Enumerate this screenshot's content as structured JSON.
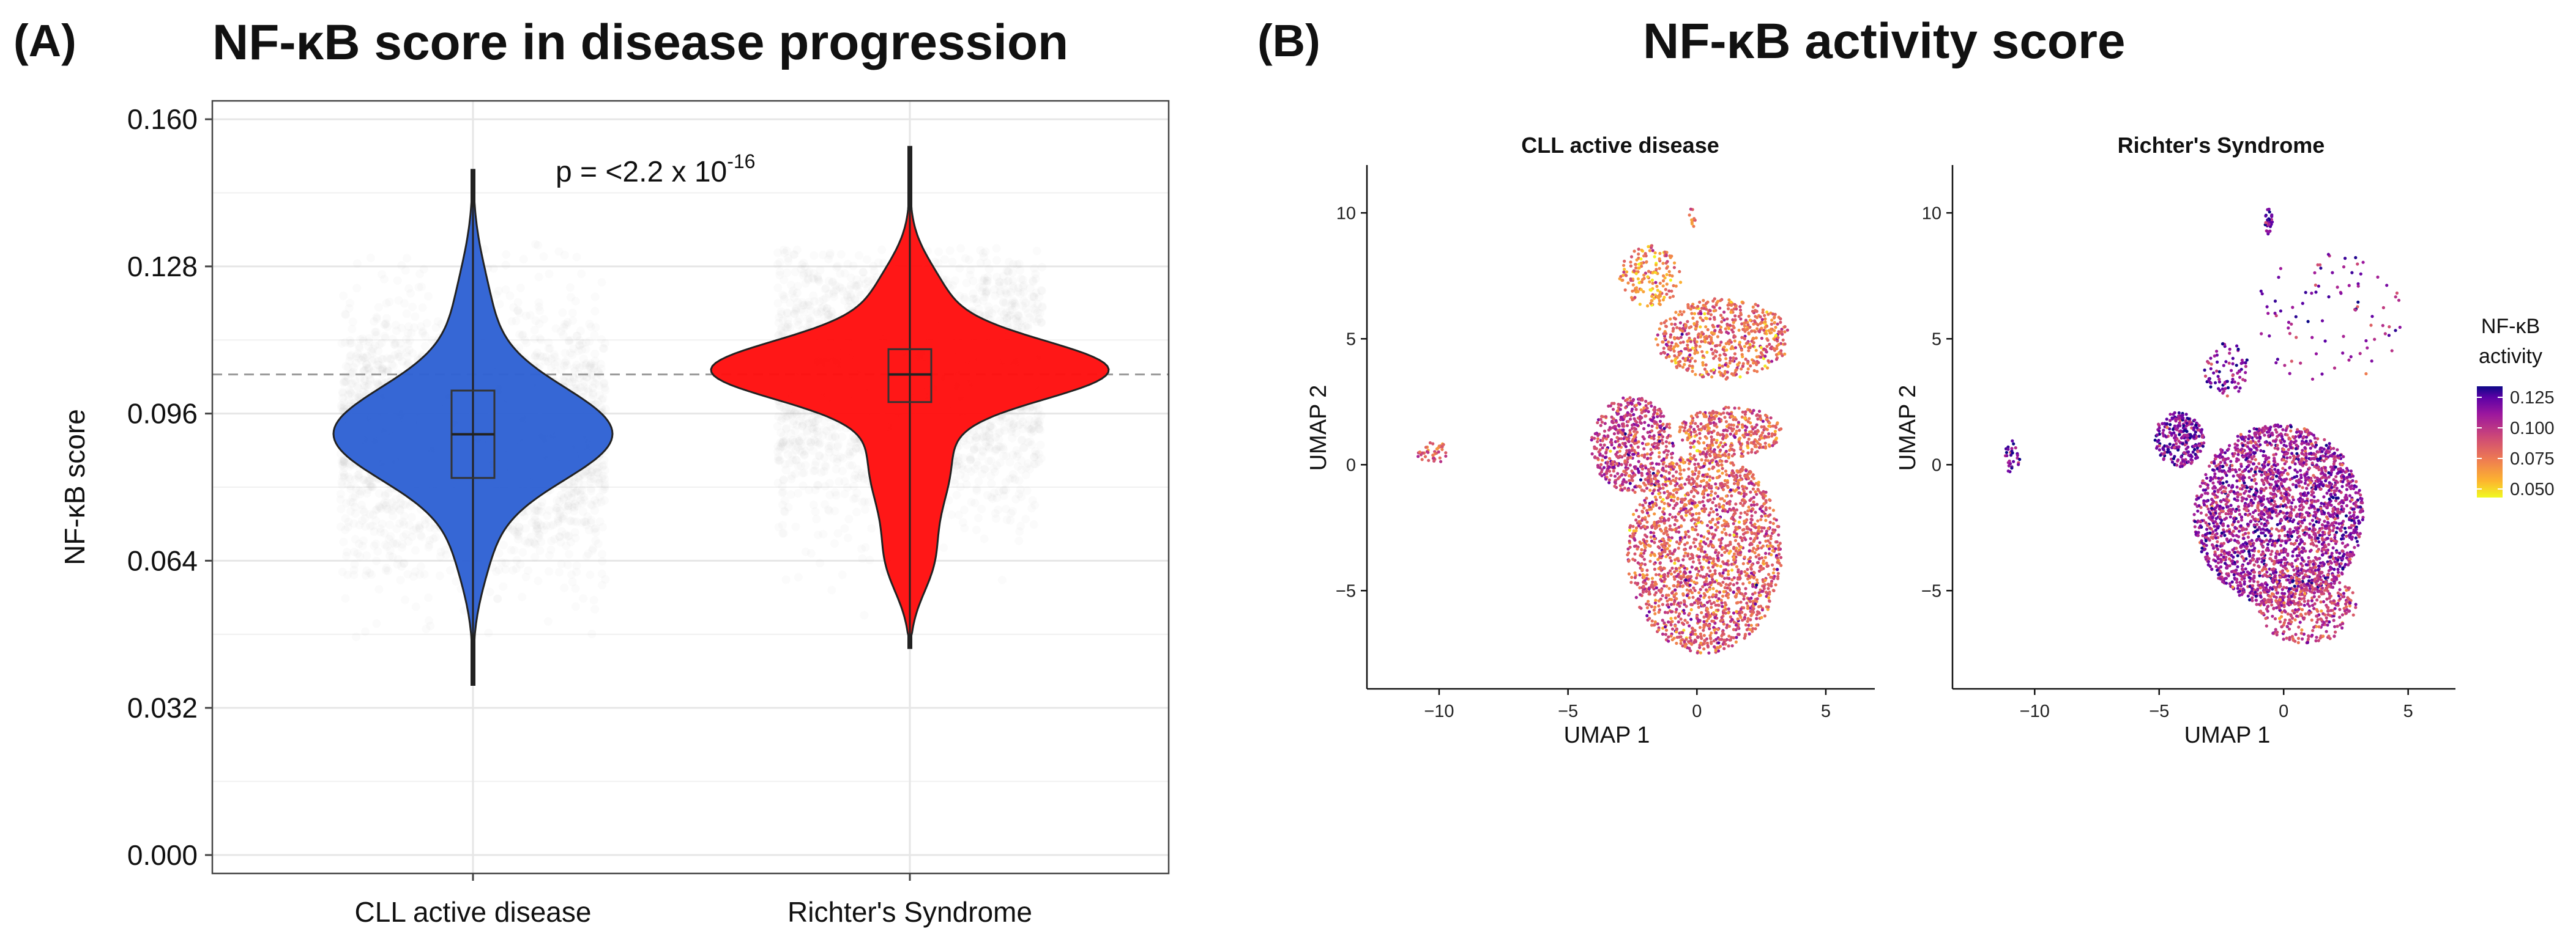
{
  "panel_a": {
    "letter": "(A)",
    "title": "NF-κB score in disease progression"
  },
  "panel_b": {
    "letter": "(B)",
    "title": "NF-κB activity score"
  },
  "colors": {
    "cll": "#2f62d4",
    "rs": "#ff1010",
    "jitter": "#9a9a9a",
    "grid": "#e6e6e6",
    "plasma_low": "#f0f921",
    "plasma_mid": "#cc4778",
    "plasma_high": "#0d0887"
  },
  "chart_data": [
    {
      "type": "violin",
      "title": "NF-κB score in disease progression",
      "xlabel": "",
      "ylabel": "NF-κB score",
      "ylim": [
        -0.004,
        0.164
      ],
      "yticks": [
        0.0,
        0.032,
        0.064,
        0.096,
        0.128,
        0.16
      ],
      "ytick_labels": [
        "0.000",
        "0.032",
        "0.064",
        "0.096",
        "0.128",
        "0.160"
      ],
      "categories": [
        "CLL active disease",
        "Richter's Syndrome"
      ],
      "series": [
        {
          "name": "CLL active disease",
          "min": 0.037,
          "q1": 0.082,
          "median": 0.0915,
          "q3": 0.101,
          "max": 0.149,
          "mode": 0.0915,
          "jitter_range": [
            0.06,
            0.127
          ]
        },
        {
          "name": "Richter's Syndrome",
          "min": 0.045,
          "q1": 0.0985,
          "median": 0.1045,
          "q3": 0.11,
          "max": 0.154,
          "mode": 0.106,
          "jitter_range": [
            0.06,
            0.126
          ]
        }
      ],
      "reference_line": 0.1045,
      "annotation": {
        "prefix": "p = <2.2 x 10",
        "superscript": "-16"
      }
    },
    {
      "type": "scatter",
      "title": "CLL active disease",
      "xlabel": "UMAP 1",
      "ylabel": "UMAP 2",
      "xlim": [
        -12.8,
        6.9
      ],
      "ylim": [
        -8.9,
        11.9
      ],
      "xticks": [
        -10,
        -5,
        0,
        5
      ],
      "xtick_labels": [
        "−10",
        "−5",
        "0",
        "5"
      ],
      "yticks": [
        -5,
        0,
        5,
        10
      ],
      "ytick_labels": [
        "−5",
        "0",
        "5",
        "10"
      ],
      "color_by": "NF-κB activity",
      "clusters": [
        {
          "cx": -10.3,
          "cy": 0.5,
          "rx": 0.6,
          "ry": 0.5,
          "value": 0.085,
          "n": 40
        },
        {
          "cx": 0.3,
          "cy": -3.5,
          "rx": 3.0,
          "ry": 4.0,
          "value": 0.086,
          "n": 1900
        },
        {
          "cx": -2.5,
          "cy": 0.8,
          "rx": 1.6,
          "ry": 1.9,
          "value": 0.097,
          "n": 550
        },
        {
          "cx": 1.0,
          "cy": 5.0,
          "rx": 2.6,
          "ry": 1.6,
          "value": 0.08,
          "n": 600
        },
        {
          "cx": -1.8,
          "cy": 7.5,
          "rx": 1.2,
          "ry": 1.2,
          "value": 0.07,
          "n": 170
        },
        {
          "cx": 1.3,
          "cy": 1.3,
          "rx": 2.0,
          "ry": 1.0,
          "value": 0.082,
          "n": 350
        },
        {
          "cx": -0.2,
          "cy": 9.8,
          "rx": 0.15,
          "ry": 0.4,
          "value": 0.08,
          "n": 10
        }
      ]
    },
    {
      "type": "scatter",
      "title": "Richter's Syndrome",
      "xlabel": "UMAP 1",
      "ylabel": "UMAP 2",
      "xlim": [
        -13.3,
        6.9
      ],
      "ylim": [
        -8.9,
        11.9
      ],
      "xticks": [
        -10,
        -5,
        0,
        5
      ],
      "xtick_labels": [
        "−10",
        "−5",
        "0",
        "5"
      ],
      "yticks": [
        -5,
        0,
        5,
        10
      ],
      "ytick_labels": [
        "−5",
        "0",
        "5",
        "10"
      ],
      "color_by": "NF-κB activity",
      "clusters": [
        {
          "cx": -10.9,
          "cy": 0.3,
          "rx": 0.3,
          "ry": 0.7,
          "value": 0.118,
          "n": 30
        },
        {
          "cx": -0.2,
          "cy": -2.0,
          "rx": 3.4,
          "ry": 3.6,
          "value": 0.108,
          "n": 2400
        },
        {
          "cx": 0.9,
          "cy": -5.6,
          "rx": 2.0,
          "ry": 1.5,
          "value": 0.094,
          "n": 350
        },
        {
          "cx": -4.2,
          "cy": 1.0,
          "rx": 1.0,
          "ry": 1.1,
          "value": 0.116,
          "n": 260
        },
        {
          "cx": -2.3,
          "cy": 3.8,
          "rx": 0.9,
          "ry": 1.1,
          "value": 0.116,
          "n": 80
        },
        {
          "cx": 1.8,
          "cy": 5.8,
          "rx": 3.0,
          "ry": 2.6,
          "value": 0.112,
          "n": 90
        },
        {
          "cx": -0.6,
          "cy": 9.7,
          "rx": 0.15,
          "ry": 0.6,
          "value": 0.124,
          "n": 35
        }
      ]
    }
  ],
  "legend": {
    "title_line1": "NF-κB",
    "title_line2": "activity",
    "ticks": [
      0.125,
      0.1,
      0.075,
      0.05
    ],
    "tick_labels": [
      "0.125",
      "0.100",
      "0.075",
      "0.050"
    ],
    "range": [
      0.043,
      0.134
    ]
  }
}
